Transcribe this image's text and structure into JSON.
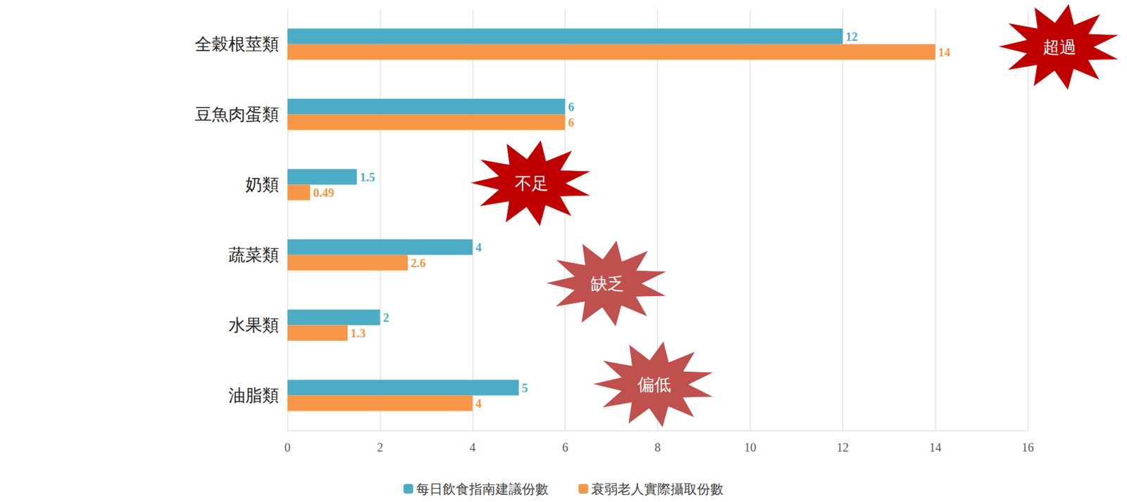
{
  "chart_data": {
    "type": "bar",
    "orientation": "horizontal",
    "categories": [
      "全穀根莖類",
      "豆魚肉蛋類",
      "奶類",
      "蔬菜類",
      "水果類",
      "油脂類"
    ],
    "series": [
      {
        "name": "每日飲食指南建議份數",
        "color": "#4bacc6",
        "values": [
          12,
          6,
          1.5,
          4,
          2,
          5
        ]
      },
      {
        "name": "衰弱老人實際攝取份數",
        "color": "#f79646",
        "values": [
          14,
          6,
          0.49,
          2.6,
          1.3,
          4
        ]
      }
    ],
    "xlim": [
      0,
      16
    ],
    "xticks": [
      0,
      2,
      4,
      6,
      8,
      10,
      12,
      14,
      16
    ],
    "grid": true,
    "legend": "bottom",
    "data_labels": true,
    "annotations": [
      "超過",
      "不足",
      "缺乏",
      "偏低"
    ]
  }
}
